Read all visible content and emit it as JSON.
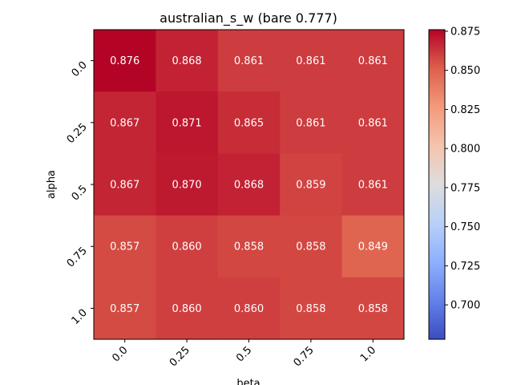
{
  "chart_data": {
    "type": "heatmap",
    "title": "australian_s_w (bare 0.777)",
    "xlabel": "beta",
    "ylabel": "alpha",
    "x_categories": [
      "0.0",
      "0.25",
      "0.5",
      "0.75",
      "1.0"
    ],
    "y_categories": [
      "0.0",
      "0.25",
      "0.5",
      "0.75",
      "1.0"
    ],
    "values": [
      [
        0.876,
        0.868,
        0.861,
        0.861,
        0.861
      ],
      [
        0.867,
        0.871,
        0.865,
        0.861,
        0.861
      ],
      [
        0.867,
        0.87,
        0.868,
        0.859,
        0.861
      ],
      [
        0.857,
        0.86,
        0.858,
        0.858,
        0.849
      ],
      [
        0.857,
        0.86,
        0.86,
        0.858,
        0.858
      ]
    ],
    "cell_labels": [
      [
        "0.876",
        "0.868",
        "0.861",
        "0.861",
        "0.861"
      ],
      [
        "0.867",
        "0.871",
        "0.865",
        "0.861",
        "0.861"
      ],
      [
        "0.867",
        "0.870",
        "0.868",
        "0.859",
        "0.861"
      ],
      [
        "0.857",
        "0.860",
        "0.858",
        "0.858",
        "0.849"
      ],
      [
        "0.857",
        "0.860",
        "0.860",
        "0.858",
        "0.858"
      ]
    ],
    "colormap": "coolwarm",
    "vmin": 0.678,
    "vmax": 0.876,
    "colorbar_ticks": [
      "0.700",
      "0.725",
      "0.750",
      "0.775",
      "0.800",
      "0.825",
      "0.850",
      "0.875"
    ],
    "colorbar_tick_values": [
      0.7,
      0.725,
      0.75,
      0.775,
      0.8,
      0.825,
      0.85,
      0.875
    ]
  }
}
